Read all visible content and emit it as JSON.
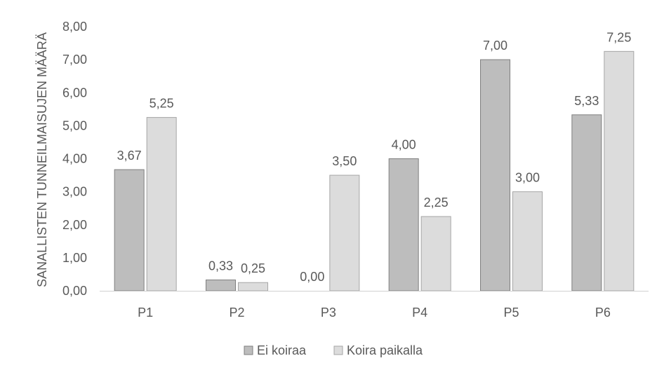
{
  "chart_data": {
    "type": "bar",
    "title": "",
    "xlabel": "",
    "ylabel": "SANALLISTEN TUNNEILMAISUJEN MÄÄRÄ",
    "categories": [
      "P1",
      "P2",
      "P3",
      "P4",
      "P5",
      "P6"
    ],
    "series": [
      {
        "name": "Ei koiraa",
        "values": [
          3.67,
          0.33,
          0.0,
          4.0,
          7.0,
          5.33
        ],
        "labels": [
          "3,67",
          "0,33",
          "0,00",
          "4,00",
          "7,00",
          "5,33"
        ],
        "color": "#bdbdbd"
      },
      {
        "name": "Koira paikalla",
        "values": [
          5.25,
          0.25,
          3.5,
          2.25,
          3.0,
          7.25
        ],
        "labels": [
          "5,25",
          "0,25",
          "3,50",
          "2,25",
          "3,00",
          "7,25"
        ],
        "color": "#dcdcdc"
      }
    ],
    "ylim": [
      0,
      8
    ],
    "yticks": [
      0,
      1,
      2,
      3,
      4,
      5,
      6,
      7,
      8
    ],
    "ytick_labels": [
      "0,00",
      "1,00",
      "2,00",
      "3,00",
      "4,00",
      "5,00",
      "6,00",
      "7,00",
      "8,00"
    ],
    "grid": false,
    "legend_position": "bottom"
  }
}
